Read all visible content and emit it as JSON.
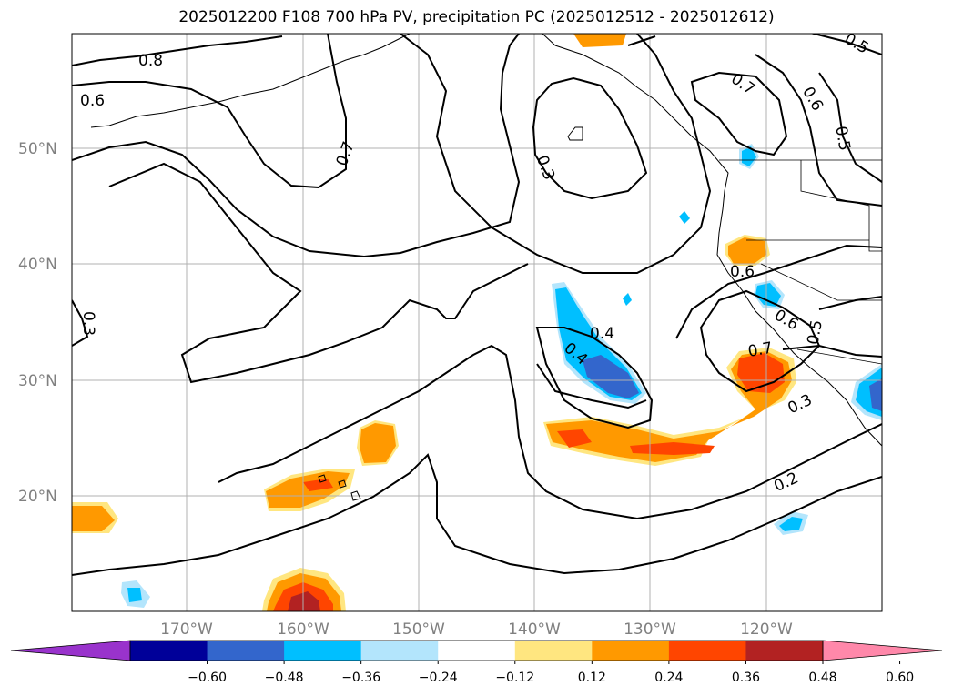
{
  "title": "2025012200 F108 700 hPa PV, precipitation PC (2025012512 - 2025012612)",
  "map": {
    "lat_ticks": [
      "20°N",
      "30°N",
      "40°N",
      "50°N"
    ],
    "lon_ticks": [
      "170°W",
      "160°W",
      "150°W",
      "140°W",
      "130°W",
      "120°W"
    ]
  },
  "contour_labels": [
    "0.8",
    "0.6",
    "0.7",
    "0.3",
    "0.3",
    "0.7",
    "0.6",
    "0.5",
    "0.5",
    "0.6",
    "0.6",
    "0.4",
    "0.4",
    "0.5",
    "0.7",
    "0.3",
    "0.2"
  ],
  "colorbar": {
    "colors": [
      "#9933cc",
      "#000099",
      "#3366cc",
      "#00bfff",
      "#b3e5fc",
      "#ffffff",
      "#ffe680",
      "#ff9900",
      "#ff4500",
      "#b22222",
      "#ff88aa"
    ],
    "tick_labels": [
      "−0.60",
      "−0.48",
      "−0.36",
      "−0.24",
      "−0.12",
      "0.12",
      "0.24",
      "0.36",
      "0.48",
      "0.60"
    ]
  }
}
